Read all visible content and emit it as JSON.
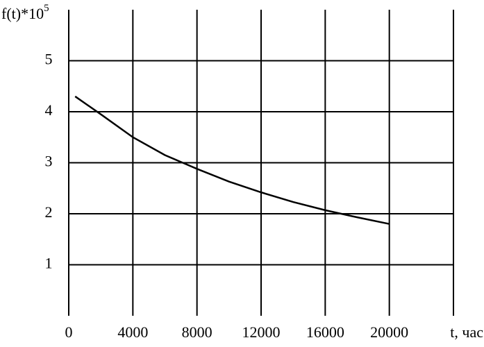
{
  "chart_data": {
    "type": "line",
    "ylabel": {
      "base": "f(t)*10",
      "exponent": "5"
    },
    "xlabel": "t, час",
    "x": [
      400,
      2000,
      4000,
      6000,
      8000,
      10000,
      12000,
      14000,
      16000,
      18000,
      20000
    ],
    "series": [
      {
        "color": "#000000",
        "values": [
          4.3,
          3.95,
          3.5,
          3.15,
          2.88,
          2.63,
          2.42,
          2.23,
          2.07,
          1.93,
          1.8
        ]
      }
    ],
    "xlim": [
      0,
      24000
    ],
    "xticks": [
      0,
      4000,
      8000,
      12000,
      16000,
      20000
    ],
    "ylim": [
      0,
      6
    ],
    "yticks": [
      1,
      2,
      3,
      4,
      5
    ],
    "grid": true
  }
}
